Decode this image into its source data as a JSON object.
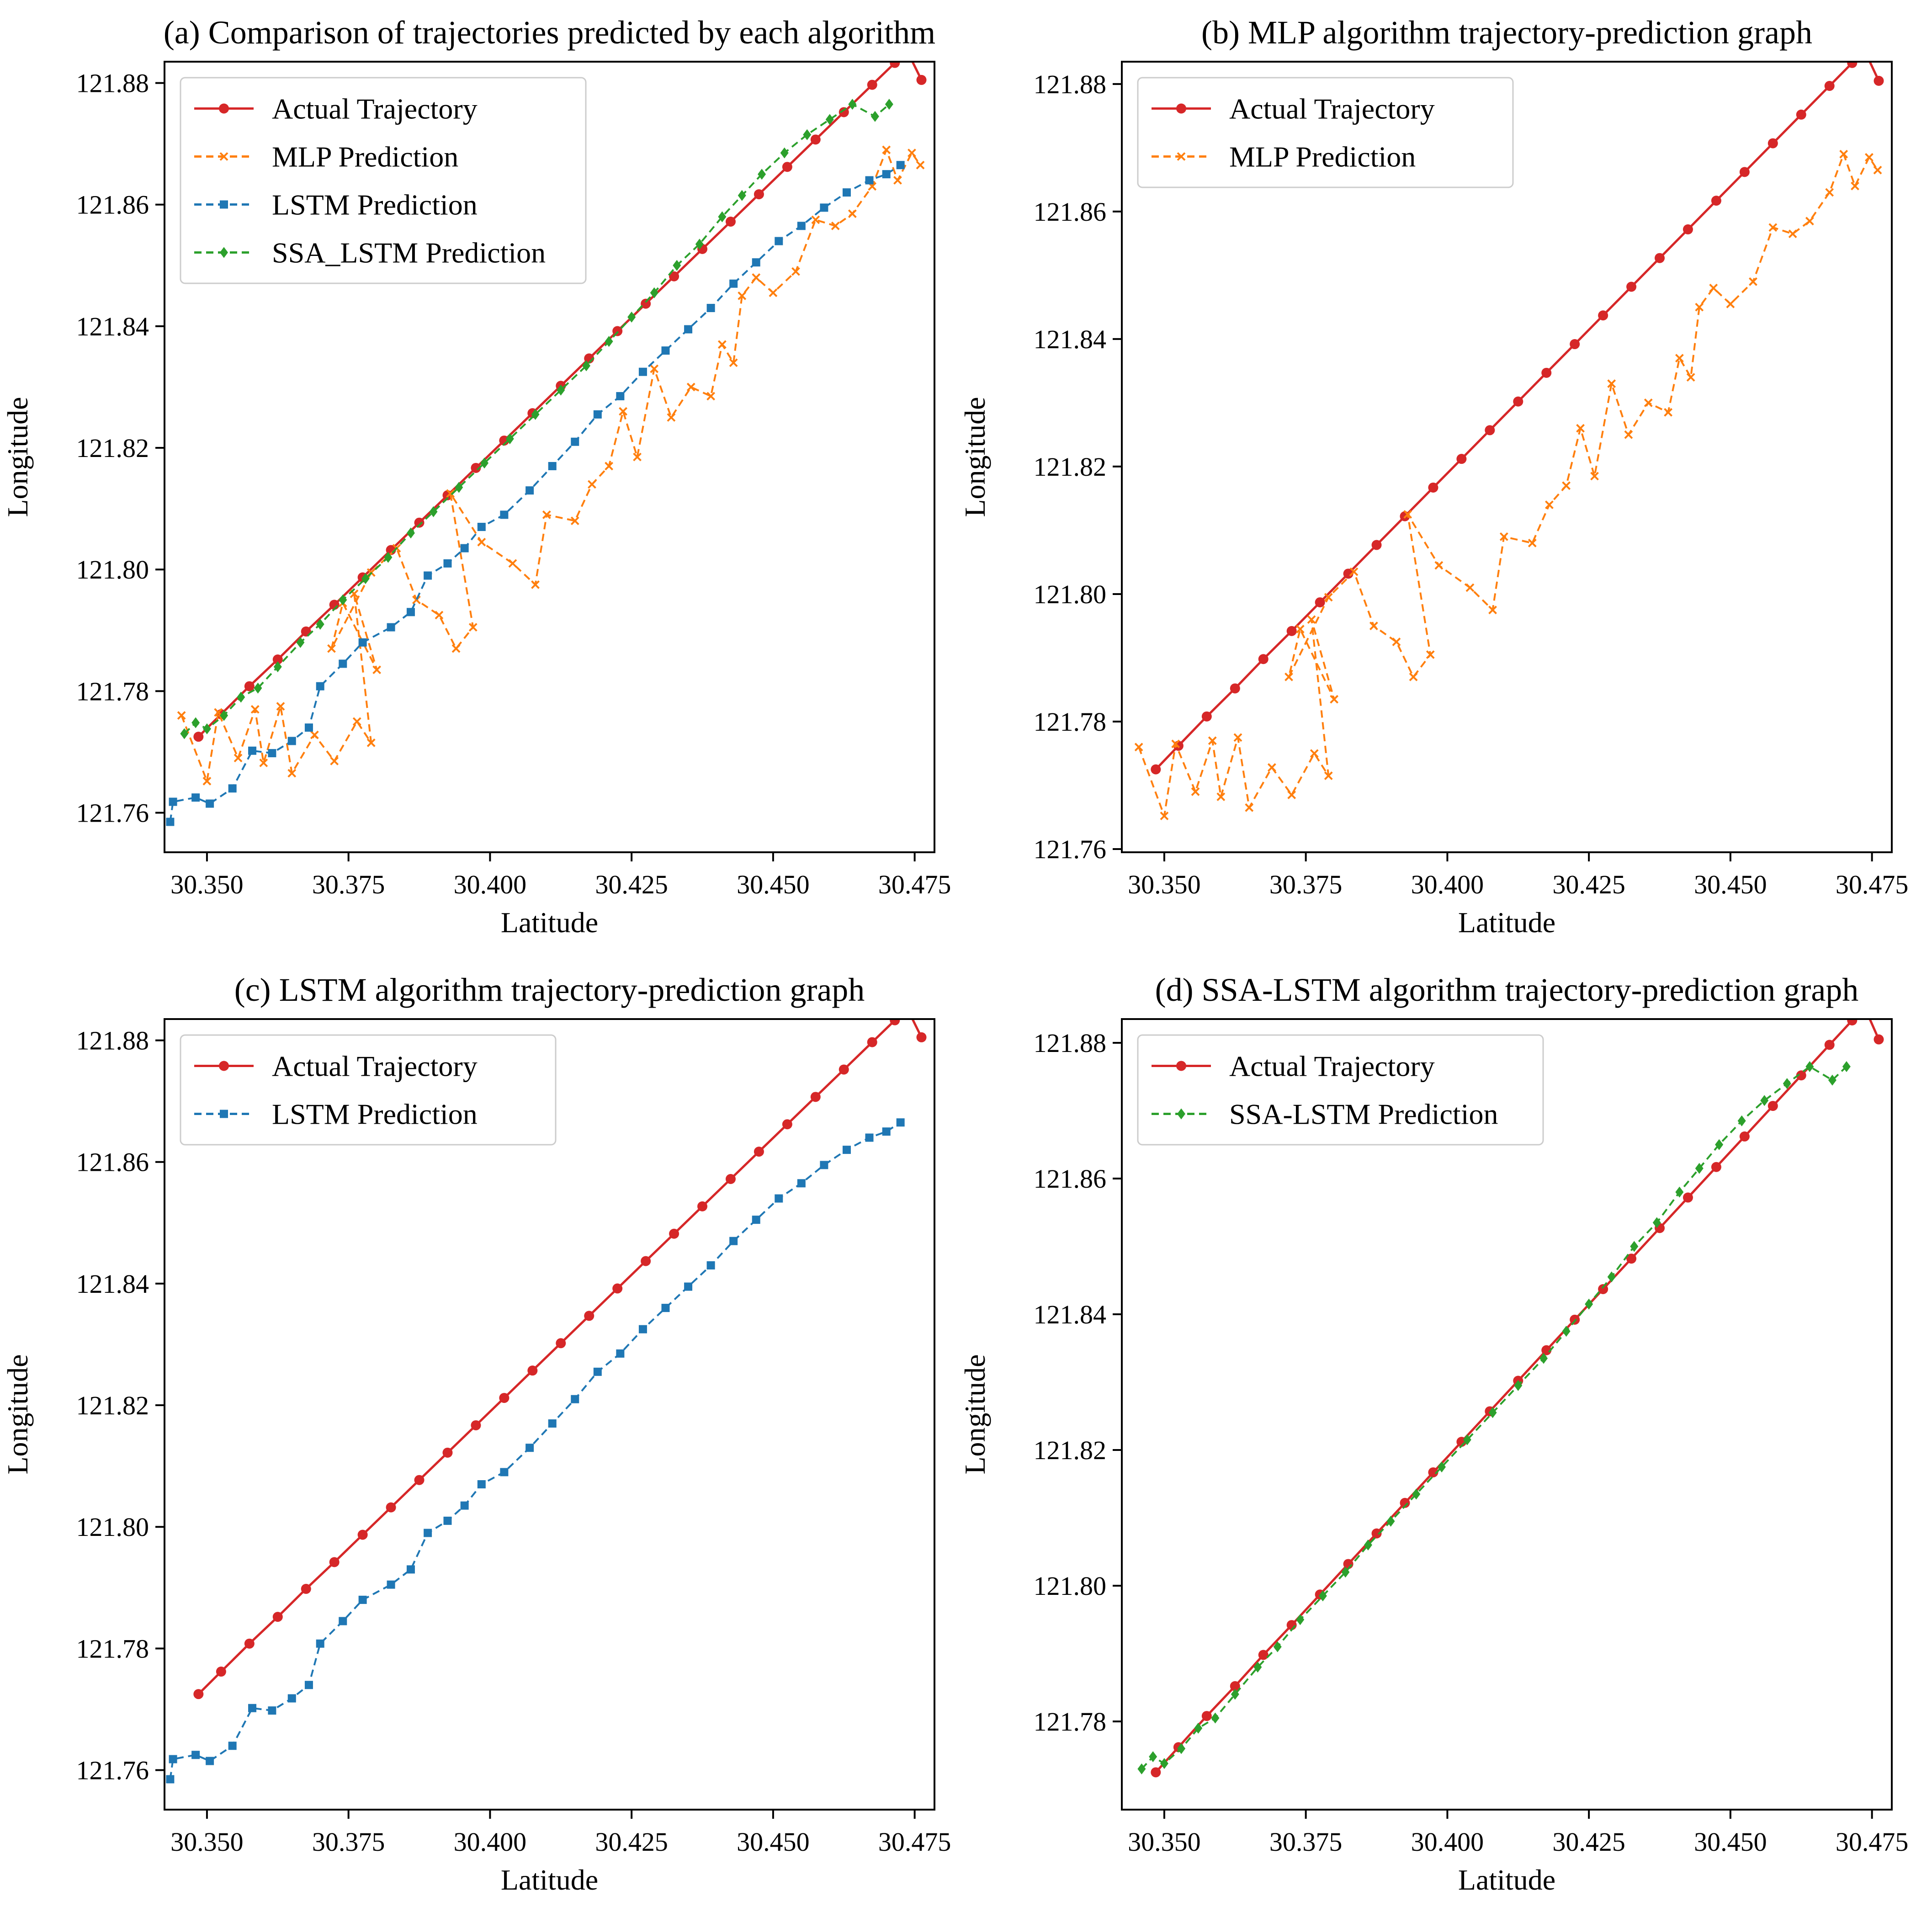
{
  "colors": {
    "actual": "#d62728",
    "mlp": "#ff7f0e",
    "lstm": "#1f77b4",
    "ssa": "#2ca02c"
  },
  "chart_data": [
    {
      "id": "a",
      "type": "line",
      "title": "(a) Comparison of trajectories predicted by each algorithm",
      "xlabel": "Latitude",
      "ylabel": "Longitude",
      "xlim": [
        30.3425,
        30.4785
      ],
      "ylim": [
        121.7535,
        121.8835
      ],
      "xticks": [
        "30.350",
        "30.375",
        "30.400",
        "30.425",
        "30.450",
        "30.475"
      ],
      "yticks": [
        "121.76",
        "121.78",
        "121.80",
        "121.82",
        "121.84",
        "121.86",
        "121.88"
      ],
      "legend_position": "upper-left",
      "series": [
        {
          "key": "actual",
          "name": "Actual Trajectory",
          "marker": "circle",
          "line": "solid",
          "color": "#d62728"
        },
        {
          "key": "mlp",
          "name": "MLP Prediction",
          "marker": "x",
          "line": "dashed",
          "color": "#ff7f0e"
        },
        {
          "key": "lstm",
          "name": "LSTM Prediction",
          "marker": "square",
          "line": "dashed",
          "color": "#1f77b4"
        },
        {
          "key": "ssa",
          "name": "SSA_LSTM Prediction",
          "marker": "diamond",
          "line": "dashed",
          "color": "#2ca02c"
        }
      ]
    },
    {
      "id": "b",
      "type": "line",
      "title": "(b) MLP algorithm trajectory-prediction graph",
      "xlabel": "Latitude",
      "ylabel": "Longitude",
      "xlim": [
        30.3425,
        30.4785
      ],
      "ylim": [
        121.7595,
        121.8835
      ],
      "xticks": [
        "30.350",
        "30.375",
        "30.400",
        "30.425",
        "30.450",
        "30.475"
      ],
      "yticks": [
        "121.76",
        "121.78",
        "121.80",
        "121.82",
        "121.84",
        "121.86",
        "121.88"
      ],
      "legend_position": "upper-left",
      "series": [
        {
          "key": "actual",
          "name": "Actual Trajectory",
          "marker": "circle",
          "line": "solid",
          "color": "#d62728"
        },
        {
          "key": "mlp",
          "name": "MLP Prediction",
          "marker": "x",
          "line": "dashed",
          "color": "#ff7f0e"
        }
      ]
    },
    {
      "id": "c",
      "type": "line",
      "title": "(c) LSTM algorithm trajectory-prediction graph",
      "xlabel": "Latitude",
      "ylabel": "Longitude",
      "xlim": [
        30.3425,
        30.4785
      ],
      "ylim": [
        121.7535,
        121.8835
      ],
      "xticks": [
        "30.350",
        "30.375",
        "30.400",
        "30.425",
        "30.450",
        "30.475"
      ],
      "yticks": [
        "121.76",
        "121.78",
        "121.80",
        "121.82",
        "121.84",
        "121.86",
        "121.88"
      ],
      "legend_position": "upper-left",
      "series": [
        {
          "key": "actual",
          "name": "Actual Trajectory",
          "marker": "circle",
          "line": "solid",
          "color": "#d62728"
        },
        {
          "key": "lstm",
          "name": "LSTM Prediction",
          "marker": "square",
          "line": "dashed",
          "color": "#1f77b4"
        }
      ]
    },
    {
      "id": "d",
      "type": "line",
      "title": "(d) SSA-LSTM algorithm trajectory-prediction graph",
      "xlabel": "Latitude",
      "ylabel": "Longitude",
      "xlim": [
        30.3425,
        30.4785
      ],
      "ylim": [
        121.767,
        121.8835
      ],
      "xticks": [
        "30.350",
        "30.375",
        "30.400",
        "30.425",
        "30.450",
        "30.475"
      ],
      "yticks": [
        "121.78",
        "121.80",
        "121.82",
        "121.84",
        "121.86",
        "121.88"
      ],
      "legend_position": "upper-left",
      "series": [
        {
          "key": "actual",
          "name": "Actual Trajectory",
          "marker": "circle",
          "line": "solid",
          "color": "#d62728"
        },
        {
          "key": "ssa",
          "name": "SSA-LSTM Prediction",
          "marker": "diamond",
          "line": "dashed",
          "color": "#2ca02c"
        }
      ]
    }
  ],
  "trajectories": {
    "actual": [
      [
        30.3485,
        121.7725
      ],
      [
        30.3525,
        121.7762
      ],
      [
        30.3575,
        121.7808
      ],
      [
        30.3625,
        121.7852
      ],
      [
        30.3675,
        121.7898
      ],
      [
        30.3725,
        121.7942
      ],
      [
        30.3775,
        121.7987
      ],
      [
        30.3825,
        121.8032
      ],
      [
        30.3875,
        121.8077
      ],
      [
        30.3925,
        121.8122
      ],
      [
        30.3975,
        121.8167
      ],
      [
        30.4025,
        121.8212
      ],
      [
        30.4075,
        121.8257
      ],
      [
        30.4125,
        121.8302
      ],
      [
        30.4175,
        121.8347
      ],
      [
        30.4225,
        121.8392
      ],
      [
        30.4275,
        121.8437
      ],
      [
        30.4325,
        121.8482
      ],
      [
        30.4375,
        121.8527
      ],
      [
        30.4425,
        121.8572
      ],
      [
        30.4475,
        121.8617
      ],
      [
        30.4525,
        121.8662
      ],
      [
        30.4575,
        121.8707
      ],
      [
        30.4625,
        121.8752
      ],
      [
        30.4675,
        121.8797
      ],
      [
        30.4715,
        121.8833
      ],
      [
        30.4735,
        121.8856
      ],
      [
        30.4762,
        121.8805
      ]
    ],
    "mlp": [
      [
        30.3455,
        121.776
      ],
      [
        30.35,
        121.7652
      ],
      [
        30.352,
        121.7765
      ],
      [
        30.3555,
        121.769
      ],
      [
        30.3585,
        121.777
      ],
      [
        30.36,
        121.7682
      ],
      [
        30.363,
        121.7775
      ],
      [
        30.365,
        121.7665
      ],
      [
        30.369,
        121.7728
      ],
      [
        30.3725,
        121.7685
      ],
      [
        30.3765,
        121.775
      ],
      [
        30.379,
        121.7715
      ],
      [
        30.376,
        121.796
      ],
      [
        30.38,
        121.7835
      ],
      [
        30.374,
        121.7945
      ],
      [
        30.372,
        121.787
      ],
      [
        30.379,
        121.7995
      ],
      [
        30.3835,
        121.8035
      ],
      [
        30.387,
        121.795
      ],
      [
        30.391,
        121.7925
      ],
      [
        30.394,
        121.787
      ],
      [
        30.397,
        121.7905
      ],
      [
        30.393,
        121.8125
      ],
      [
        30.3985,
        121.8045
      ],
      [
        30.404,
        121.801
      ],
      [
        30.408,
        121.7975
      ],
      [
        30.41,
        121.809
      ],
      [
        30.415,
        121.808
      ],
      [
        30.418,
        121.814
      ],
      [
        30.421,
        121.817
      ],
      [
        30.4235,
        121.826
      ],
      [
        30.426,
        121.8185
      ],
      [
        30.429,
        121.833
      ],
      [
        30.432,
        121.825
      ],
      [
        30.4355,
        121.83
      ],
      [
        30.439,
        121.8285
      ],
      [
        30.441,
        121.837
      ],
      [
        30.443,
        121.834
      ],
      [
        30.4445,
        121.845
      ],
      [
        30.447,
        121.848
      ],
      [
        30.45,
        121.8455
      ],
      [
        30.454,
        121.849
      ],
      [
        30.4575,
        121.8575
      ],
      [
        30.461,
        121.8565
      ],
      [
        30.464,
        121.8585
      ],
      [
        30.4675,
        121.863
      ],
      [
        30.47,
        121.869
      ],
      [
        30.472,
        121.864
      ],
      [
        30.4745,
        121.8685
      ],
      [
        30.476,
        121.8665
      ]
    ],
    "lstm": [
      [
        30.3435,
        121.7585
      ],
      [
        30.344,
        121.7618
      ],
      [
        30.348,
        121.7625
      ],
      [
        30.3505,
        121.7615
      ],
      [
        30.3545,
        121.764
      ],
      [
        30.358,
        121.7702
      ],
      [
        30.3615,
        121.7698
      ],
      [
        30.365,
        121.7718
      ],
      [
        30.368,
        121.774
      ],
      [
        30.37,
        121.7808
      ],
      [
        30.374,
        121.7845
      ],
      [
        30.3775,
        121.788
      ],
      [
        30.3825,
        121.7905
      ],
      [
        30.386,
        121.793
      ],
      [
        30.389,
        121.799
      ],
      [
        30.3925,
        121.801
      ],
      [
        30.3955,
        121.8035
      ],
      [
        30.3985,
        121.807
      ],
      [
        30.4025,
        121.809
      ],
      [
        30.407,
        121.813
      ],
      [
        30.411,
        121.817
      ],
      [
        30.415,
        121.821
      ],
      [
        30.419,
        121.8255
      ],
      [
        30.423,
        121.8285
      ],
      [
        30.427,
        121.8325
      ],
      [
        30.431,
        121.836
      ],
      [
        30.435,
        121.8395
      ],
      [
        30.439,
        121.843
      ],
      [
        30.443,
        121.847
      ],
      [
        30.447,
        121.8505
      ],
      [
        30.451,
        121.854
      ],
      [
        30.455,
        121.8565
      ],
      [
        30.459,
        121.8595
      ],
      [
        30.463,
        121.862
      ],
      [
        30.467,
        121.864
      ],
      [
        30.47,
        121.865
      ],
      [
        30.4725,
        121.8665
      ]
    ],
    "ssa": [
      [
        30.346,
        121.773
      ],
      [
        30.348,
        121.7748
      ],
      [
        30.35,
        121.7738
      ],
      [
        30.353,
        121.776
      ],
      [
        30.356,
        121.779
      ],
      [
        30.359,
        121.7805
      ],
      [
        30.3625,
        121.784
      ],
      [
        30.3665,
        121.788
      ],
      [
        30.37,
        121.791
      ],
      [
        30.374,
        121.795
      ],
      [
        30.378,
        121.7985
      ],
      [
        30.382,
        121.802
      ],
      [
        30.386,
        121.806
      ],
      [
        30.39,
        121.8095
      ],
      [
        30.3945,
        121.8135
      ],
      [
        30.399,
        121.8175
      ],
      [
        30.4035,
        121.8215
      ],
      [
        30.408,
        121.8255
      ],
      [
        30.4125,
        121.8295
      ],
      [
        30.417,
        121.8335
      ],
      [
        30.421,
        121.8375
      ],
      [
        30.425,
        121.8415
      ],
      [
        30.429,
        121.8455
      ],
      [
        30.433,
        121.85
      ],
      [
        30.437,
        121.8535
      ],
      [
        30.441,
        121.858
      ],
      [
        30.4445,
        121.8615
      ],
      [
        30.448,
        121.865
      ],
      [
        30.452,
        121.8685
      ],
      [
        30.456,
        121.8715
      ],
      [
        30.46,
        121.874
      ],
      [
        30.464,
        121.8765
      ],
      [
        30.468,
        121.8745
      ],
      [
        30.4705,
        121.8765
      ]
    ]
  }
}
